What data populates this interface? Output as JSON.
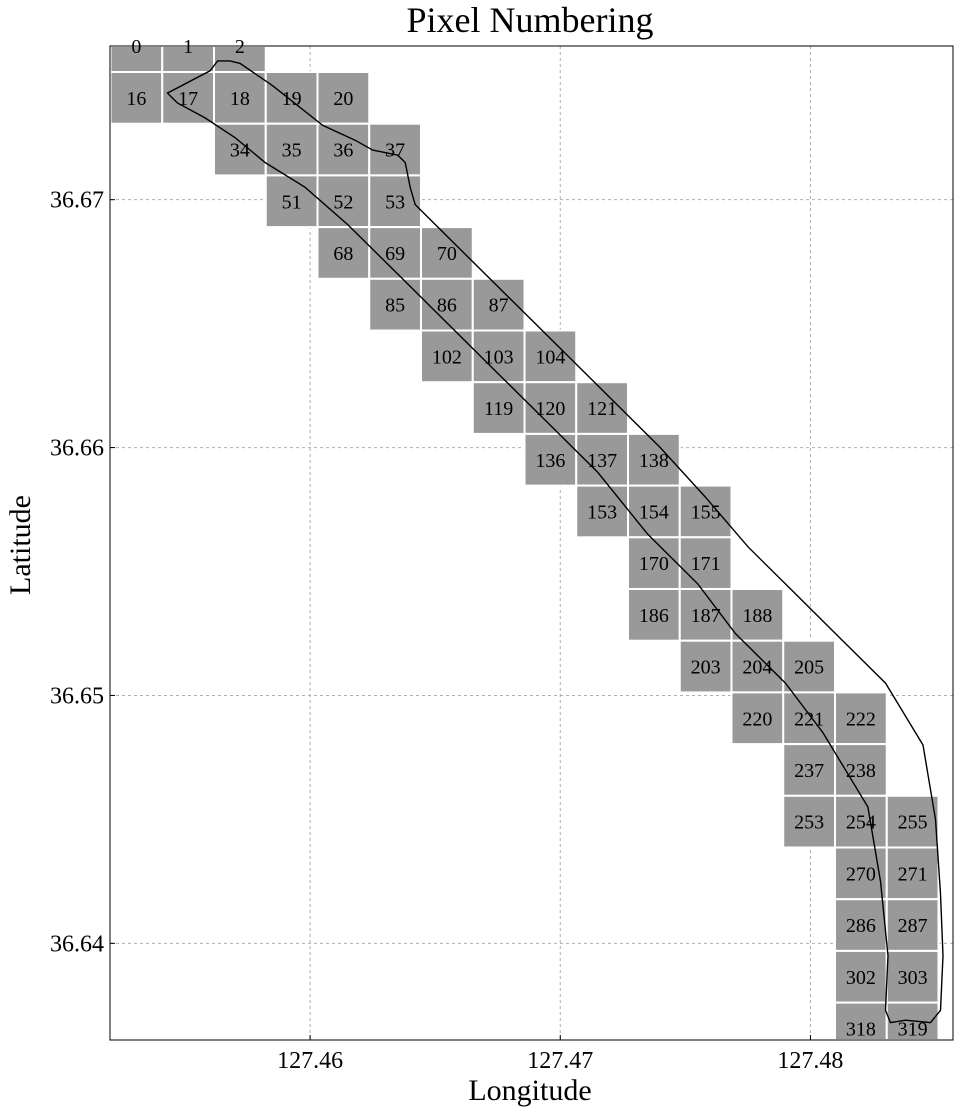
{
  "chart_data": {
    "type": "heatmap",
    "title": "Pixel Numbering",
    "xlabel": "Longitude",
    "ylabel": "Latitude",
    "xlim": [
      127.452,
      127.4857
    ],
    "ylim": [
      36.6361,
      36.6762
    ],
    "x_ticks": [
      {
        "value": 127.46,
        "label": "127.46"
      },
      {
        "value": 127.47,
        "label": "127.47"
      },
      {
        "value": 127.48,
        "label": "127.48"
      }
    ],
    "y_ticks": [
      {
        "value": 36.67,
        "label": "36.67"
      },
      {
        "value": 36.66,
        "label": "36.66"
      },
      {
        "value": 36.65,
        "label": "36.65"
      },
      {
        "value": 36.64,
        "label": "36.64"
      }
    ],
    "grid": true,
    "grid_columns": 16,
    "cell_color": "#999999",
    "cell_border_color": "#ffffff",
    "line_color": "#000000",
    "pixels": [
      0,
      1,
      2,
      16,
      17,
      18,
      19,
      20,
      34,
      35,
      36,
      37,
      51,
      52,
      53,
      68,
      69,
      70,
      85,
      86,
      87,
      102,
      103,
      104,
      119,
      120,
      121,
      136,
      137,
      138,
      153,
      154,
      155,
      170,
      171,
      186,
      187,
      188,
      203,
      204,
      205,
      220,
      221,
      222,
      237,
      238,
      253,
      254,
      255,
      270,
      271,
      286,
      287,
      302,
      303,
      318,
      319
    ],
    "boundary": [
      [
        127.4547,
        36.6739
      ],
      [
        127.4543,
        36.6743
      ],
      [
        127.456,
        36.6752
      ],
      [
        127.4563,
        36.6756
      ],
      [
        127.4568,
        36.6756
      ],
      [
        127.4572,
        36.6755
      ],
      [
        127.4585,
        36.6746
      ],
      [
        127.4605,
        36.673
      ],
      [
        127.4618,
        36.6724
      ],
      [
        127.4625,
        36.672
      ],
      [
        127.4635,
        36.6718
      ],
      [
        127.4638,
        36.6715
      ],
      [
        127.464,
        36.6705
      ],
      [
        127.4642,
        36.6698
      ],
      [
        127.466,
        36.668
      ],
      [
        127.468,
        36.666
      ],
      [
        127.47,
        36.664
      ],
      [
        127.472,
        36.662
      ],
      [
        127.474,
        36.66
      ],
      [
        127.4758,
        36.658
      ],
      [
        127.4775,
        36.656
      ],
      [
        127.4795,
        36.654
      ],
      [
        127.4815,
        36.652
      ],
      [
        127.483,
        36.6505
      ],
      [
        127.4845,
        36.648
      ],
      [
        127.485,
        36.645
      ],
      [
        127.4852,
        36.642
      ],
      [
        127.4853,
        36.6395
      ],
      [
        127.4852,
        36.6373
      ],
      [
        127.4848,
        36.6368
      ],
      [
        127.4838,
        36.6369
      ],
      [
        127.4832,
        36.6368
      ],
      [
        127.483,
        36.6373
      ],
      [
        127.4831,
        36.6395
      ],
      [
        127.4828,
        36.6425
      ],
      [
        127.4823,
        36.6455
      ],
      [
        127.4805,
        36.6485
      ],
      [
        127.479,
        36.6505
      ],
      [
        127.477,
        36.6525
      ],
      [
        127.4755,
        36.6545
      ],
      [
        127.4735,
        36.6565
      ],
      [
        127.4715,
        36.659
      ],
      [
        127.4695,
        36.661
      ],
      [
        127.4675,
        36.663
      ],
      [
        127.4655,
        36.665
      ],
      [
        127.4635,
        36.667
      ],
      [
        127.4615,
        36.669
      ],
      [
        127.4598,
        36.6705
      ],
      [
        127.4582,
        36.6715
      ],
      [
        127.457,
        36.6725
      ],
      [
        127.4558,
        36.6733
      ],
      [
        127.4547,
        36.6739
      ]
    ]
  }
}
